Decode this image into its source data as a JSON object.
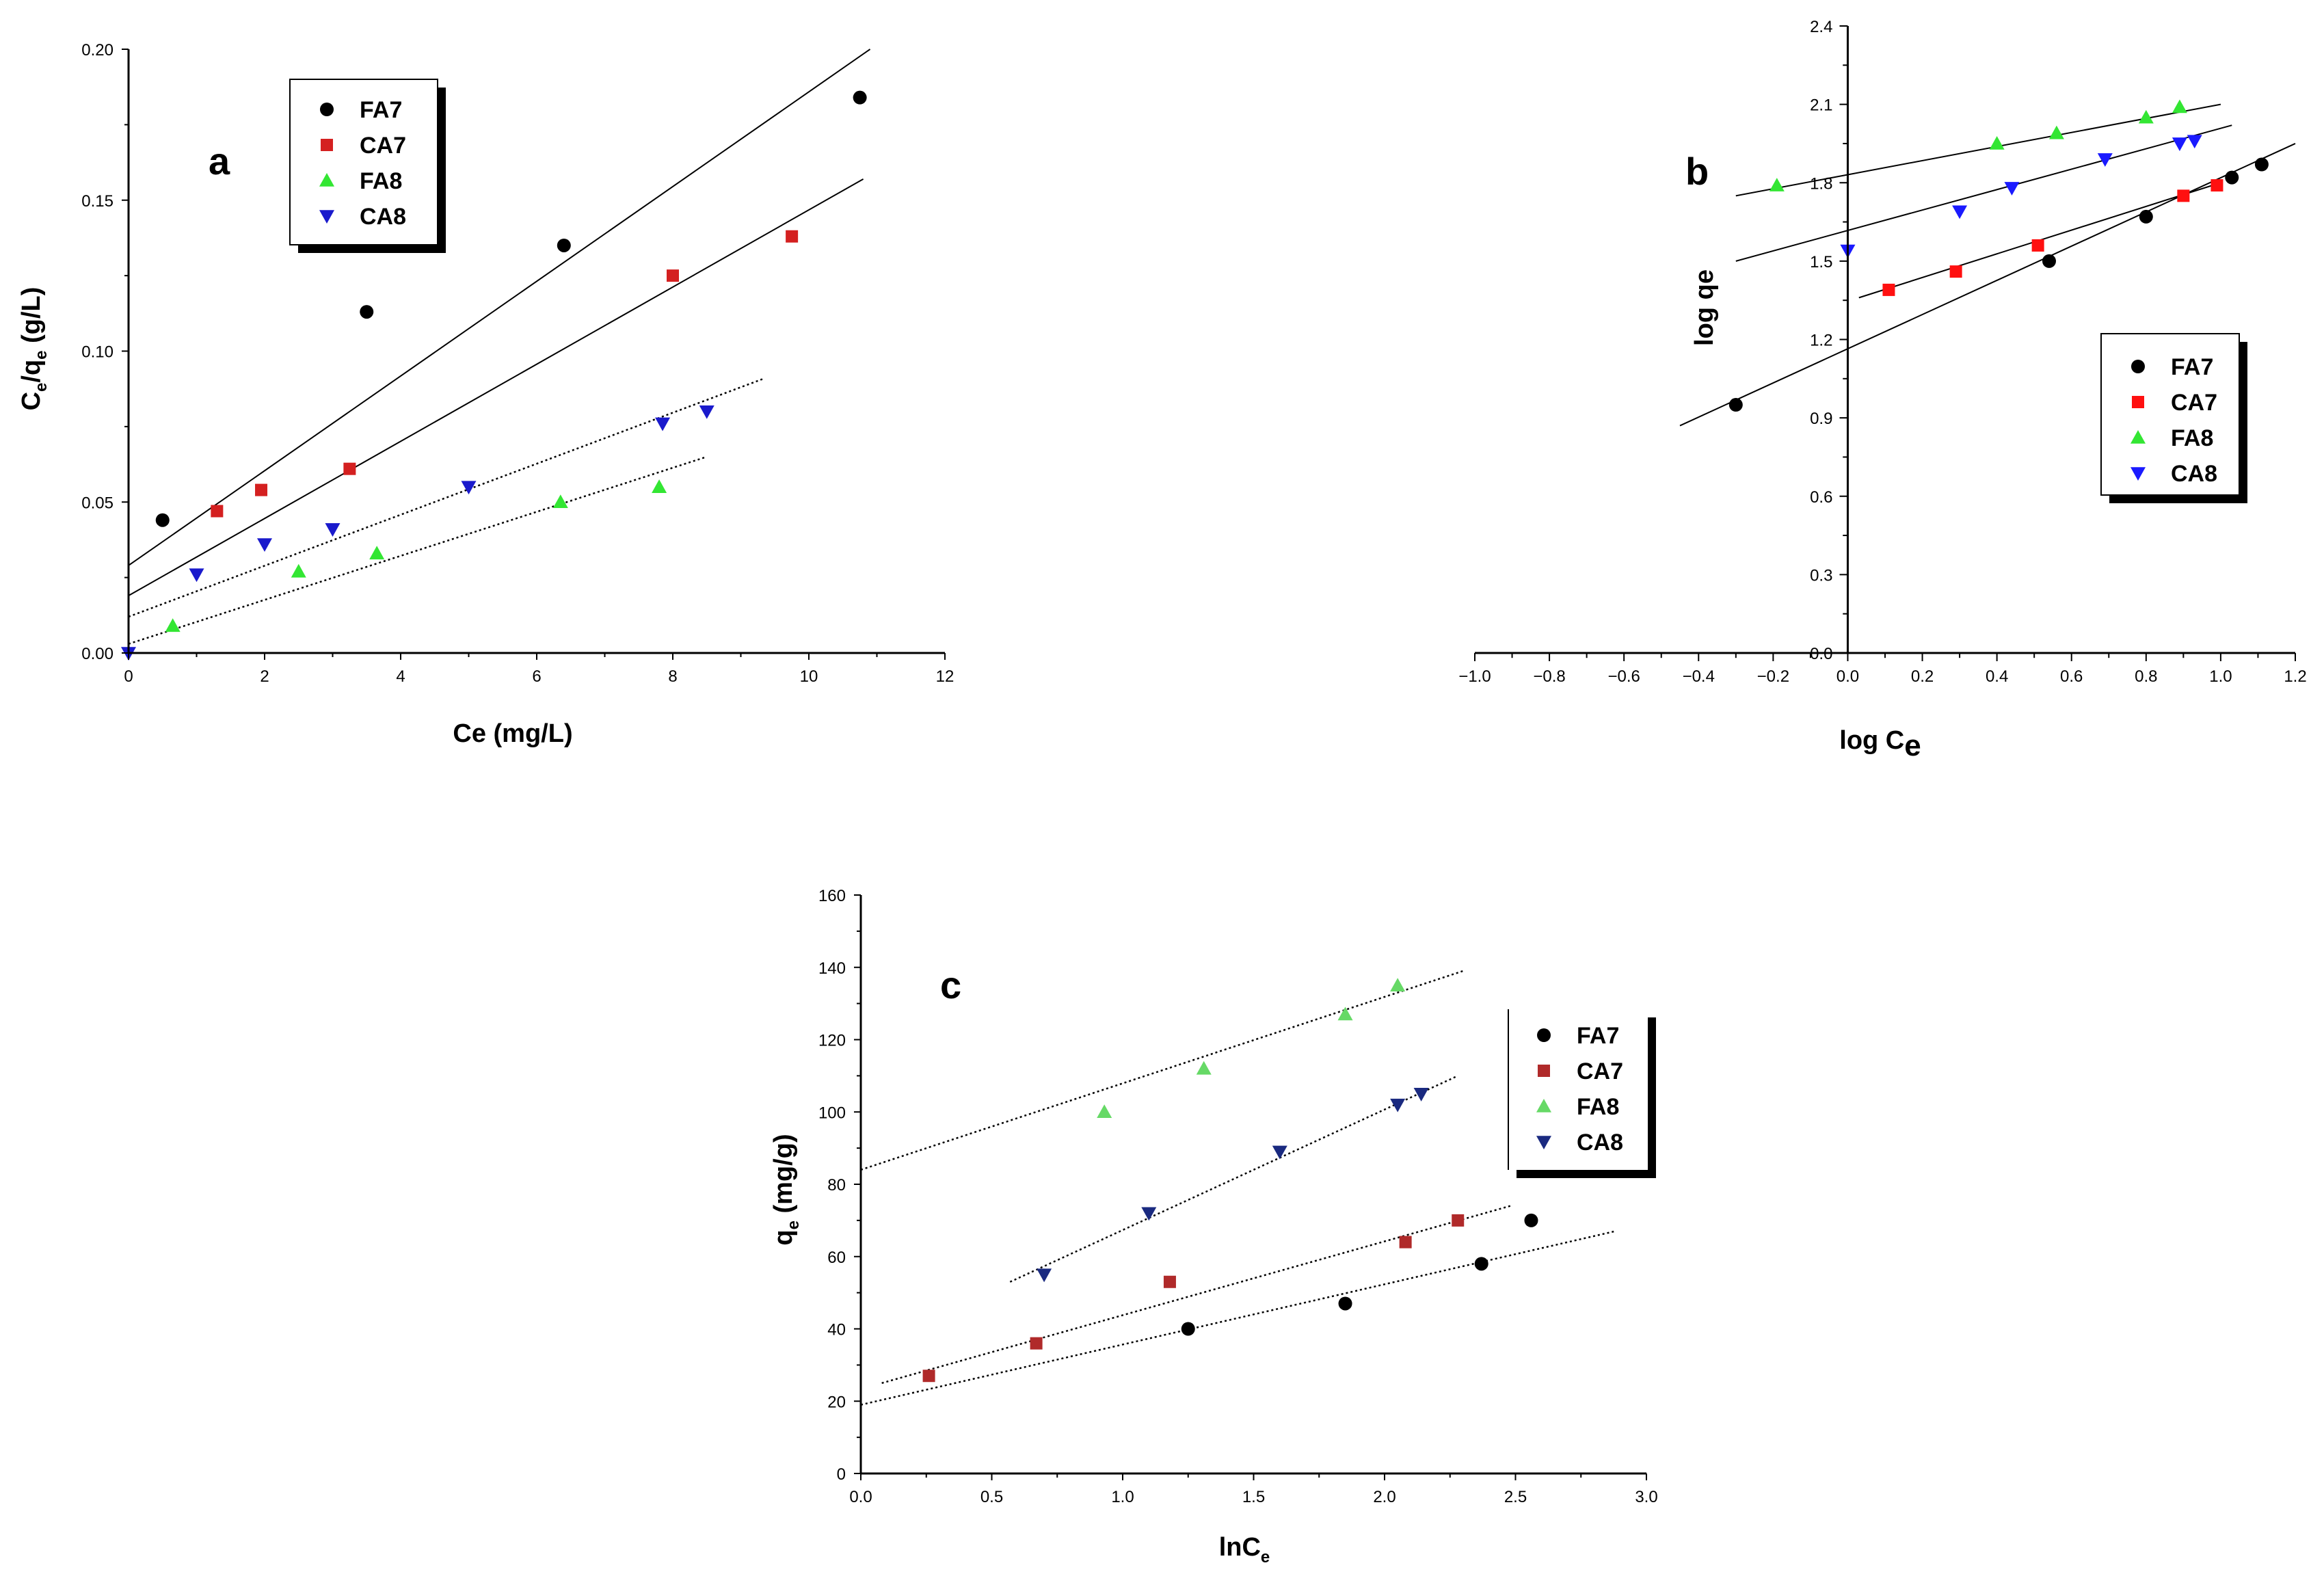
{
  "colors": {
    "FA7": "#000000",
    "CA7_a": "#d42020",
    "CA7_b": "#ff1010",
    "CA7_c": "#b02a2a",
    "FA8": "#33e633",
    "FA8_c": "#66d966",
    "CA8_a": "#1a1acc",
    "CA8_b": "#1a1aff",
    "CA8_c": "#1a2a80",
    "fit_line": "#000000"
  },
  "chart_data": [
    {
      "type": "scatter",
      "panel_label": "a",
      "xlabel": "Ce (mg/L)",
      "ylabel_main": "C",
      "ylabel_sub1": "e",
      "ylabel_mid": "/q",
      "ylabel_sub2": "e",
      "ylabel_tail": " (g/L)",
      "xlim": [
        0,
        12
      ],
      "ylim": [
        0,
        0.2
      ],
      "x_ticks": [
        "0",
        "2",
        "4",
        "6",
        "8",
        "10",
        "12"
      ],
      "y_ticks": [
        "0.00",
        "0.05",
        "0.10",
        "0.15",
        "0.20"
      ],
      "legend": [
        "FA7",
        "CA7",
        "FA8",
        "CA8"
      ],
      "legend_position": "top-left",
      "grid": false,
      "series": [
        {
          "name": "FA7",
          "marker": "circle",
          "color": "#000000",
          "x": [
            0.5,
            3.5,
            6.4,
            10.75
          ],
          "y": [
            0.044,
            0.113,
            0.135,
            0.184
          ],
          "fit": {
            "x": [
              0,
              10.9
            ],
            "y": [
              0.029,
              0.2
            ],
            "style": "solid"
          }
        },
        {
          "name": "CA7",
          "marker": "square",
          "color": "#d42020",
          "x": [
            1.3,
            1.95,
            3.25,
            8.0,
            9.75
          ],
          "y": [
            0.047,
            0.054,
            0.061,
            0.125,
            0.138
          ],
          "fit": {
            "x": [
              0,
              10.8
            ],
            "y": [
              0.019,
              0.157
            ],
            "style": "solid"
          }
        },
        {
          "name": "FA8",
          "marker": "triangle-up",
          "color": "#33e633",
          "x": [
            0.65,
            2.5,
            3.65,
            6.35,
            7.8
          ],
          "y": [
            0.009,
            0.027,
            0.033,
            0.05,
            0.055
          ],
          "fit": {
            "x": [
              0,
              8.5
            ],
            "y": [
              0.003,
              0.065
            ],
            "style": "dotted"
          }
        },
        {
          "name": "CA8",
          "marker": "triangle-down",
          "color": "#1a1acc",
          "x": [
            0,
            1.0,
            2.0,
            3.0,
            5.0,
            7.85,
            8.5
          ],
          "y": [
            0.0,
            0.026,
            0.036,
            0.041,
            0.055,
            0.076,
            0.08
          ],
          "fit": {
            "x": [
              0,
              9.35
            ],
            "y": [
              0.012,
              0.091
            ],
            "style": "dotted"
          }
        }
      ]
    },
    {
      "type": "scatter",
      "panel_label": "b",
      "xlabel_main": "log C",
      "xlabel_sub": "e",
      "ylabel": "log qe",
      "xlim": [
        -1.0,
        1.2
      ],
      "ylim": [
        0,
        2.4
      ],
      "x_ticks": [
        "−1.0",
        "−0.8",
        "−0.6",
        "−0.4",
        "−0.2",
        "0.0",
        "0.2",
        "0.4",
        "0.6",
        "0.8",
        "1.0",
        "1.2"
      ],
      "y_ticks": [
        "0.0",
        "0.3",
        "0.6",
        "0.9",
        "1.2",
        "1.5",
        "1.8",
        "2.1",
        "2.4"
      ],
      "legend": [
        "FA7",
        "CA7",
        "FA8",
        "CA8"
      ],
      "legend_position": "right",
      "grid": false,
      "series": [
        {
          "name": "FA7",
          "marker": "circle",
          "color": "#000000",
          "x": [
            -0.3,
            0.54,
            0.8,
            1.03,
            1.11
          ],
          "y": [
            0.95,
            1.5,
            1.67,
            1.82,
            1.87
          ],
          "fit": {
            "x": [
              -0.45,
              1.2
            ],
            "y": [
              0.87,
              1.95
            ],
            "style": "solid"
          }
        },
        {
          "name": "CA7",
          "marker": "square",
          "color": "#ff1010",
          "x": [
            0.11,
            0.29,
            0.51,
            0.9,
            0.99
          ],
          "y": [
            1.39,
            1.46,
            1.56,
            1.75,
            1.79
          ],
          "fit": {
            "x": [
              0.03,
              1.0
            ],
            "y": [
              1.36,
              1.8
            ],
            "style": "solid"
          }
        },
        {
          "name": "FA8",
          "marker": "triangle-up",
          "color": "#33e633",
          "x": [
            -0.19,
            0.4,
            0.56,
            0.8,
            0.89
          ],
          "y": [
            1.79,
            1.95,
            1.99,
            2.05,
            2.09
          ],
          "fit": {
            "x": [
              -0.3,
              1.0
            ],
            "y": [
              1.75,
              2.1
            ],
            "style": "solid"
          }
        },
        {
          "name": "CA8",
          "marker": "triangle-down",
          "color": "#1a1aff",
          "x": [
            0.0,
            0.3,
            0.44,
            0.69,
            0.89,
            0.93
          ],
          "y": [
            1.54,
            1.69,
            1.78,
            1.89,
            1.95,
            1.96
          ],
          "fit": {
            "x": [
              -0.3,
              1.03
            ],
            "y": [
              1.5,
              2.02
            ],
            "style": "solid"
          }
        }
      ]
    },
    {
      "type": "scatter",
      "panel_label": "c",
      "xlabel_main": "lnC",
      "xlabel_sub": "e",
      "ylabel_main": "q",
      "ylabel_sub": "e",
      "ylabel_tail": " (mg/g)",
      "xlim": [
        0,
        3.0
      ],
      "ylim": [
        0,
        160
      ],
      "x_ticks": [
        "0.0",
        "0.5",
        "1.0",
        "1.5",
        "2.0",
        "2.5",
        "3.0"
      ],
      "y_ticks": [
        "0",
        "20",
        "40",
        "60",
        "80",
        "100",
        "120",
        "140",
        "160"
      ],
      "legend": [
        "FA7",
        "CA7",
        "FA8",
        "CA8"
      ],
      "legend_position": "right",
      "grid": false,
      "series": [
        {
          "name": "FA7",
          "marker": "circle",
          "color": "#000000",
          "x": [
            1.25,
            1.85,
            2.37,
            2.56
          ],
          "y": [
            40,
            47,
            58,
            70
          ],
          "fit": {
            "x": [
              0,
              2.88
            ],
            "y": [
              19,
              67
            ],
            "style": "dotted"
          }
        },
        {
          "name": "CA7",
          "marker": "square",
          "color": "#b02a2a",
          "x": [
            0.26,
            0.67,
            1.18,
            2.08,
            2.28
          ],
          "y": [
            27,
            36,
            53,
            64,
            70
          ],
          "fit": {
            "x": [
              0.08,
              2.48
            ],
            "y": [
              25,
              74
            ],
            "style": "dotted"
          }
        },
        {
          "name": "FA8",
          "marker": "triangle-up",
          "color": "#66d966",
          "x": [
            0.93,
            1.31,
            1.85,
            2.05
          ],
          "y": [
            100,
            112,
            127,
            135
          ],
          "fit": {
            "x": [
              0,
              2.3
            ],
            "y": [
              84,
              139
            ],
            "style": "dotted"
          }
        },
        {
          "name": "CA8",
          "marker": "triangle-down",
          "color": "#1a2a80",
          "x": [
            0.7,
            1.1,
            1.6,
            2.05,
            2.14
          ],
          "y": [
            55,
            72,
            89,
            102,
            105
          ],
          "fit": {
            "x": [
              0.57,
              2.28
            ],
            "y": [
              53,
              110
            ],
            "style": "dotted"
          }
        }
      ]
    }
  ]
}
